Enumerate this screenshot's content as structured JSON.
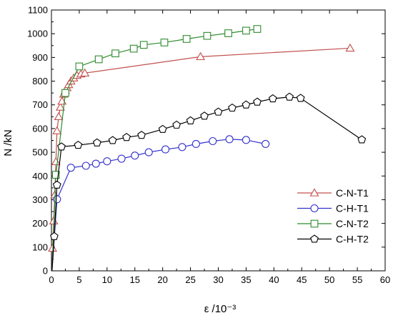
{
  "chart_data": {
    "type": "line",
    "xlabel": "ε /10⁻³",
    "ylabel": "N /kN",
    "xlim": [
      0,
      60
    ],
    "ylim": [
      0,
      1100
    ],
    "x_ticks": [
      0,
      5,
      10,
      15,
      20,
      25,
      30,
      35,
      40,
      45,
      50,
      55,
      60
    ],
    "y_ticks": [
      0,
      100,
      200,
      300,
      400,
      500,
      600,
      700,
      800,
      900,
      1000,
      1100
    ],
    "grid": false,
    "legend_position": "bottom-right",
    "series": [
      {
        "name": "C-N-T1",
        "marker": "triangle",
        "color": "#c0504d",
        "points": [
          [
            0.1,
            0
          ],
          [
            0.2,
            95
          ],
          [
            0.4,
            210
          ],
          [
            0.6,
            320
          ],
          [
            0.8,
            460
          ],
          [
            1.0,
            590
          ],
          [
            1.3,
            650
          ],
          [
            1.6,
            690
          ],
          [
            1.9,
            715
          ],
          [
            2.2,
            745
          ],
          [
            2.5,
            760
          ],
          [
            2.8,
            772
          ],
          [
            3.1,
            785
          ],
          [
            3.5,
            800
          ],
          [
            4.0,
            813
          ],
          [
            4.6,
            824
          ],
          [
            5.3,
            830
          ],
          [
            6.0,
            834
          ],
          [
            26.8,
            903
          ],
          [
            53.7,
            939
          ]
        ]
      },
      {
        "name": "C-H-T1",
        "marker": "circle",
        "color": "#3333cc",
        "points": [
          [
            0.1,
            0
          ],
          [
            1.0,
            302
          ],
          [
            3.5,
            435
          ],
          [
            6.2,
            443
          ],
          [
            8.0,
            452
          ],
          [
            10.0,
            462
          ],
          [
            12.6,
            473
          ],
          [
            15.0,
            486
          ],
          [
            17.5,
            500
          ],
          [
            20.5,
            512
          ],
          [
            23.5,
            522
          ],
          [
            26.0,
            535
          ],
          [
            29.0,
            547
          ],
          [
            32.0,
            555
          ],
          [
            35.0,
            552
          ],
          [
            38.5,
            535
          ]
        ]
      },
      {
        "name": "C-N-T2",
        "marker": "square",
        "color": "#2e8b2e",
        "points": [
          [
            0.1,
            0
          ],
          [
            0.8,
            405
          ],
          [
            2.5,
            750
          ],
          [
            5.0,
            862
          ],
          [
            8.5,
            892
          ],
          [
            11.5,
            917
          ],
          [
            14.8,
            937
          ],
          [
            16.6,
            953
          ],
          [
            20.3,
            963
          ],
          [
            24.3,
            978
          ],
          [
            28.0,
            991
          ],
          [
            31.8,
            1002
          ],
          [
            35.0,
            1013
          ],
          [
            37.0,
            1020
          ]
        ]
      },
      {
        "name": "C-H-T2",
        "marker": "pentagon",
        "color": "#000000",
        "points": [
          [
            0.1,
            0
          ],
          [
            0.5,
            145
          ],
          [
            1.0,
            362
          ],
          [
            1.8,
            523
          ],
          [
            4.8,
            530
          ],
          [
            8.2,
            540
          ],
          [
            11.0,
            550
          ],
          [
            13.5,
            563
          ],
          [
            16.2,
            572
          ],
          [
            20.0,
            597
          ],
          [
            22.5,
            615
          ],
          [
            25.0,
            633
          ],
          [
            27.5,
            653
          ],
          [
            30.0,
            670
          ],
          [
            32.5,
            687
          ],
          [
            35.0,
            700
          ],
          [
            37.0,
            712
          ],
          [
            39.8,
            726
          ],
          [
            42.8,
            733
          ],
          [
            44.8,
            728
          ],
          [
            55.8,
            553
          ]
        ]
      }
    ]
  }
}
